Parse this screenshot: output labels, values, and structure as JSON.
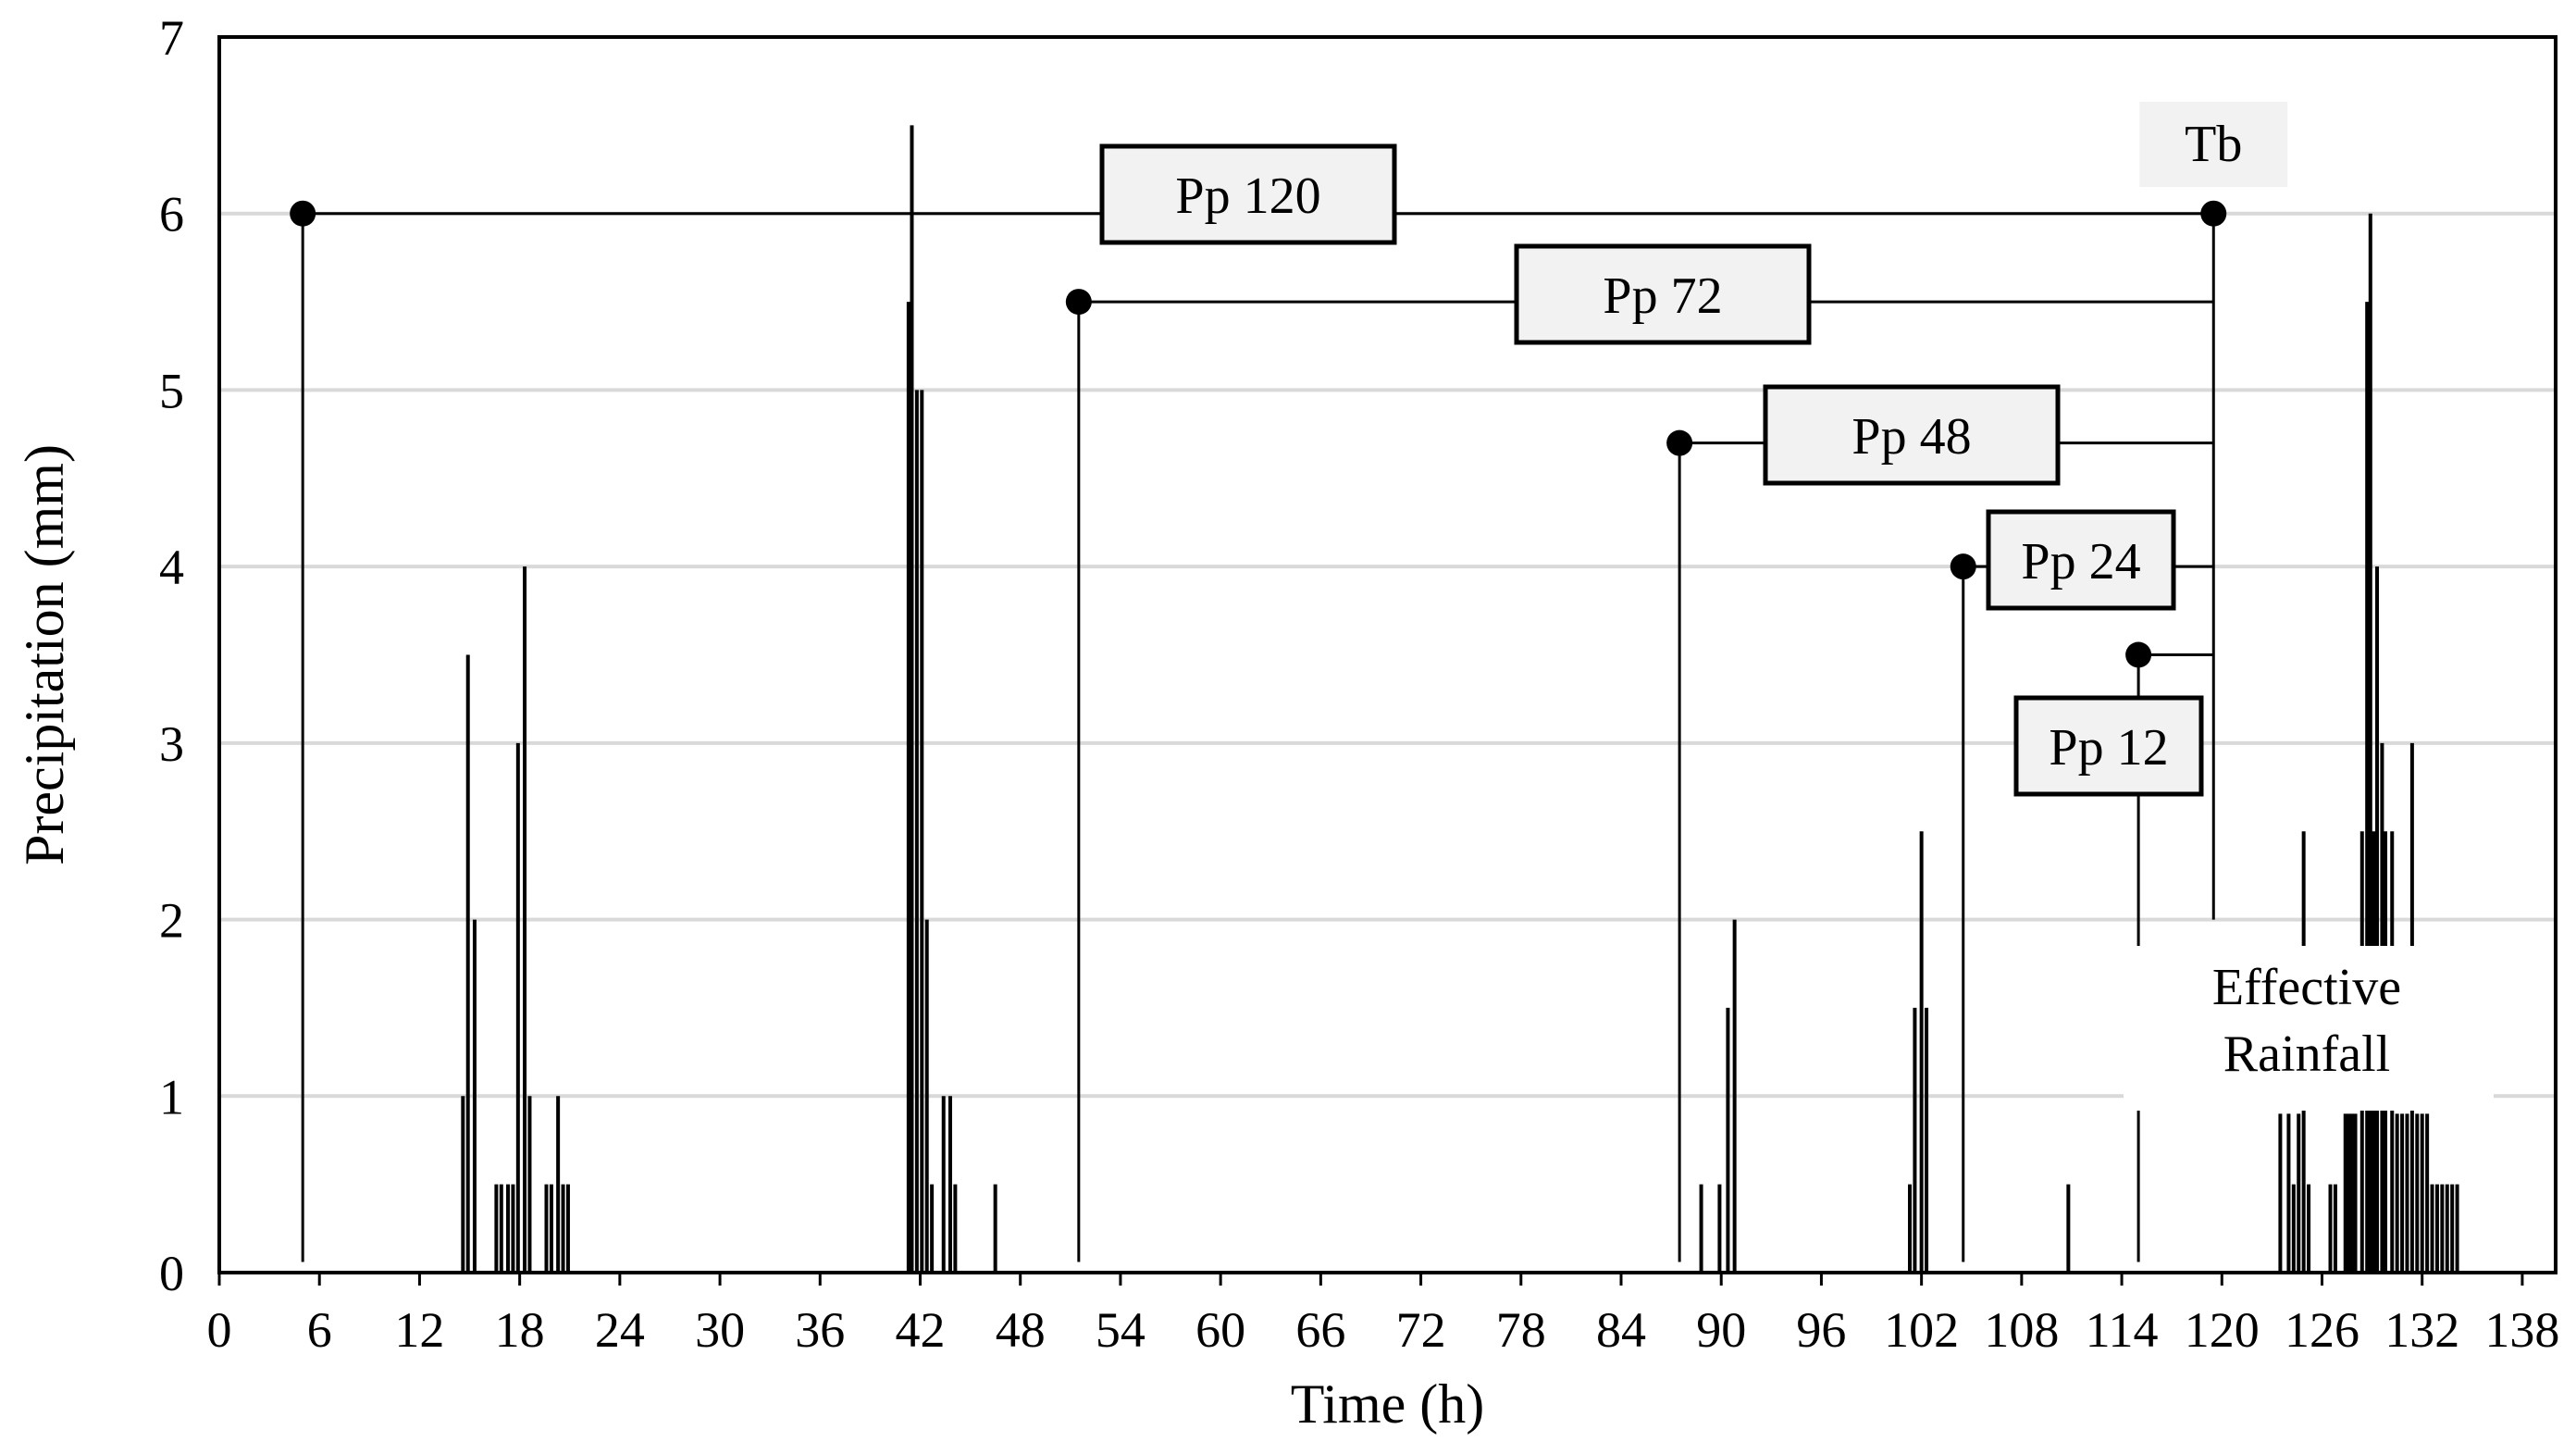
{
  "chart_data": {
    "type": "bar",
    "xlabel": "Time (h)",
    "ylabel": "Precipitation  (mm)",
    "xlim": [
      0,
      140
    ],
    "ylim": [
      0,
      7
    ],
    "x_ticks": [
      0,
      6,
      12,
      18,
      24,
      30,
      36,
      42,
      48,
      54,
      60,
      66,
      72,
      78,
      84,
      90,
      96,
      102,
      108,
      114,
      120,
      126,
      132,
      138
    ],
    "y_ticks": [
      0,
      1,
      2,
      3,
      4,
      5,
      6,
      7
    ],
    "grid": "horizontal",
    "bars": [
      {
        "x": 14.6,
        "y": 1
      },
      {
        "x": 14.9,
        "y": 3.5
      },
      {
        "x": 15.3,
        "y": 2
      },
      {
        "x": 16.6,
        "y": 0.5
      },
      {
        "x": 16.9,
        "y": 0.5
      },
      {
        "x": 17.3,
        "y": 0.5
      },
      {
        "x": 17.6,
        "y": 0.5
      },
      {
        "x": 17.9,
        "y": 3
      },
      {
        "x": 18.3,
        "y": 4
      },
      {
        "x": 18.6,
        "y": 1
      },
      {
        "x": 19.6,
        "y": 0.5
      },
      {
        "x": 19.9,
        "y": 0.5
      },
      {
        "x": 20.3,
        "y": 1
      },
      {
        "x": 20.6,
        "y": 0.5
      },
      {
        "x": 20.9,
        "y": 0.5
      },
      {
        "x": 41.3,
        "y": 5.5
      },
      {
        "x": 41.5,
        "y": 6.5
      },
      {
        "x": 41.8,
        "y": 5
      },
      {
        "x": 42.1,
        "y": 5
      },
      {
        "x": 42.4,
        "y": 2
      },
      {
        "x": 42.7,
        "y": 0.5
      },
      {
        "x": 43.4,
        "y": 1
      },
      {
        "x": 43.8,
        "y": 1
      },
      {
        "x": 44.1,
        "y": 0.5
      },
      {
        "x": 46.5,
        "y": 0.5
      },
      {
        "x": 88.8,
        "y": 0.5
      },
      {
        "x": 89.9,
        "y": 0.5
      },
      {
        "x": 90.4,
        "y": 1.5
      },
      {
        "x": 90.8,
        "y": 2
      },
      {
        "x": 101.3,
        "y": 0.5
      },
      {
        "x": 101.6,
        "y": 1.5
      },
      {
        "x": 102.0,
        "y": 2.5
      },
      {
        "x": 102.3,
        "y": 1.5
      },
      {
        "x": 110.8,
        "y": 0.5
      },
      {
        "x": 123.5,
        "y": 0.9
      },
      {
        "x": 124.0,
        "y": 0.9
      },
      {
        "x": 124.3,
        "y": 0.5
      },
      {
        "x": 124.6,
        "y": 0.9
      },
      {
        "x": 124.9,
        "y": 2.5
      },
      {
        "x": 125.2,
        "y": 0.5
      },
      {
        "x": 126.5,
        "y": 0.5
      },
      {
        "x": 126.8,
        "y": 0.5
      },
      {
        "x": 127.4,
        "y": 0.9
      },
      {
        "x": 127.6,
        "y": 0.9
      },
      {
        "x": 127.8,
        "y": 0.9
      },
      {
        "x": 128.0,
        "y": 0.9
      },
      {
        "x": 128.4,
        "y": 2.5
      },
      {
        "x": 128.7,
        "y": 5.5
      },
      {
        "x": 128.9,
        "y": 6
      },
      {
        "x": 129.1,
        "y": 2.5
      },
      {
        "x": 129.3,
        "y": 4
      },
      {
        "x": 129.6,
        "y": 3
      },
      {
        "x": 129.8,
        "y": 2.5
      },
      {
        "x": 130.2,
        "y": 2.5
      },
      {
        "x": 130.5,
        "y": 0.9
      },
      {
        "x": 130.8,
        "y": 0.9
      },
      {
        "x": 131.1,
        "y": 0.9
      },
      {
        "x": 131.4,
        "y": 3
      },
      {
        "x": 131.7,
        "y": 0.9
      },
      {
        "x": 132.0,
        "y": 0.9
      },
      {
        "x": 132.3,
        "y": 0.9
      },
      {
        "x": 132.6,
        "y": 0.5
      },
      {
        "x": 132.9,
        "y": 0.5
      },
      {
        "x": 133.2,
        "y": 0.5
      },
      {
        "x": 133.5,
        "y": 0.5
      },
      {
        "x": 133.8,
        "y": 0.5
      },
      {
        "x": 134.1,
        "y": 0.5
      }
    ],
    "tb": {
      "x": 119.5,
      "y": 6,
      "label": "Tb"
    },
    "periods": [
      {
        "label": "Pp 120",
        "start": 5,
        "level": 6
      },
      {
        "label": "Pp 72",
        "start": 51.5,
        "level": 5.5
      },
      {
        "label": "Pp 48",
        "start": 87.5,
        "level": 4.7
      },
      {
        "label": "Pp 24",
        "start": 104.5,
        "level": 4
      },
      {
        "label": "Pp 12",
        "start": 115,
        "level": 3.5
      }
    ],
    "annotation": {
      "line1": "Effective",
      "line2": "Rainfall"
    }
  }
}
